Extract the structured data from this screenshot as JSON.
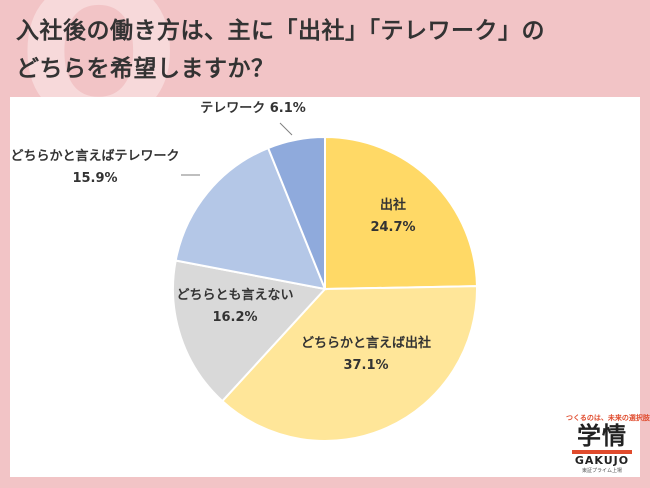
{
  "title": {
    "line1": "入社後の働き方は、主に「出社」「テレワーク」の",
    "line2": "どちらを希望しますか？"
  },
  "colors": {
    "background": "#f2c4c6",
    "panel": "#ffffff"
  },
  "chart_data": {
    "type": "pie",
    "start": "12 o'clock, clockwise",
    "slices": [
      {
        "name": "出社",
        "value": 24.7,
        "value_label": "24.7%",
        "color": "#ffd966"
      },
      {
        "name": "どちらかと言えば出社",
        "value": 37.1,
        "value_label": "37.1%",
        "color": "#ffe699"
      },
      {
        "name": "どちらとも言えない",
        "value": 16.2,
        "value_label": "16.2%",
        "color": "#d9d9d9"
      },
      {
        "name": "どちらかと言えばテレワーク",
        "value": 15.9,
        "value_label": "15.9%",
        "color": "#b4c7e7"
      },
      {
        "name": "テレワーク",
        "value": 6.1,
        "value_label": "6.1%",
        "color": "#8faadc"
      }
    ]
  },
  "logo": {
    "tagline": "つくるのは、未来の選択肢",
    "kanji": "学情",
    "name": "GAKUJO",
    "sub": "東証プライム上場"
  }
}
